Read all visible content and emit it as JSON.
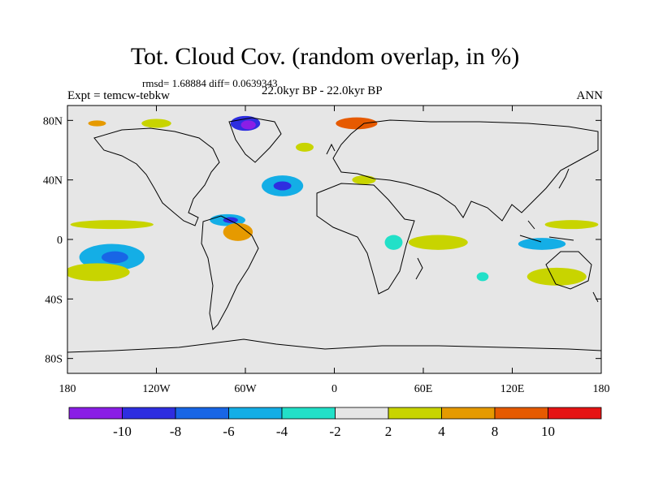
{
  "title": "Tot. Cloud Cov. (random overlap, in %)",
  "stats": "rmsd= 1.68884 diff= 0.0639343",
  "experiment": "Expt = temcw-tebkw",
  "period": "22.0kyr BP - 22.0kyr BP",
  "season": "ANN",
  "map": {
    "projection": "cylindrical-equidistant",
    "lon_range": [
      -180,
      180
    ],
    "lat_range": [
      -90,
      90
    ],
    "land_fill": "#e6e6e6",
    "lat_ticks": [
      {
        "lat": 80,
        "label": "80N"
      },
      {
        "lat": 40,
        "label": "40N"
      },
      {
        "lat": 0,
        "label": "0"
      },
      {
        "lat": -40,
        "label": "40S"
      },
      {
        "lat": -80,
        "label": "80S"
      }
    ],
    "lon_ticks": [
      {
        "lon": -180,
        "label": "180"
      },
      {
        "lon": -120,
        "label": "120W"
      },
      {
        "lon": -60,
        "label": "60W"
      },
      {
        "lon": 0,
        "label": "0"
      },
      {
        "lon": 60,
        "label": "60E"
      },
      {
        "lon": 120,
        "label": "120E"
      },
      {
        "lon": 180,
        "label": "180"
      }
    ]
  },
  "colorbar": {
    "colors": [
      "#8a1ee6",
      "#2e2ee0",
      "#1866e6",
      "#14aee6",
      "#22e0c8",
      "#e6e6e6",
      "#c8d400",
      "#e69a00",
      "#e65a00",
      "#e61414"
    ],
    "labels": [
      "-10",
      "-8",
      "-6",
      "-4",
      "-2",
      "2",
      "4",
      "8",
      "10"
    ]
  },
  "anomalies": [
    {
      "lon": -60,
      "lat": 78,
      "rx": 10,
      "ry": 5,
      "color": "#2e2ee0"
    },
    {
      "lon": -58,
      "lat": 77,
      "rx": 5,
      "ry": 3,
      "color": "#8a1ee6"
    },
    {
      "lon": -35,
      "lat": 36,
      "rx": 14,
      "ry": 7,
      "color": "#14aee6"
    },
    {
      "lon": -35,
      "lat": 36,
      "rx": 6,
      "ry": 3,
      "color": "#2e2ee0"
    },
    {
      "lon": -72,
      "lat": 13,
      "rx": 12,
      "ry": 4,
      "color": "#14aee6"
    },
    {
      "lon": -70,
      "lat": 13,
      "rx": 5,
      "ry": 2,
      "color": "#2e2ee0"
    },
    {
      "lon": -150,
      "lat": -12,
      "rx": 22,
      "ry": 9,
      "color": "#14aee6"
    },
    {
      "lon": -148,
      "lat": -12,
      "rx": 9,
      "ry": 4,
      "color": "#1866e6"
    },
    {
      "lon": -150,
      "lat": 10,
      "rx": 28,
      "ry": 3,
      "color": "#c8d400"
    },
    {
      "lon": -150,
      "lat": 3,
      "rx": 30,
      "ry": 3,
      "color": "#e6e6e6"
    },
    {
      "lon": -160,
      "lat": -22,
      "rx": 22,
      "ry": 6,
      "color": "#c8d400"
    },
    {
      "lon": -65,
      "lat": 5,
      "rx": 10,
      "ry": 6,
      "color": "#e69a00"
    },
    {
      "lon": 40,
      "lat": -2,
      "rx": 6,
      "ry": 5,
      "color": "#22e0c8"
    },
    {
      "lon": 70,
      "lat": -2,
      "rx": 20,
      "ry": 5,
      "color": "#c8d400"
    },
    {
      "lon": 140,
      "lat": -3,
      "rx": 16,
      "ry": 4,
      "color": "#14aee6"
    },
    {
      "lon": 160,
      "lat": 10,
      "rx": 18,
      "ry": 3,
      "color": "#c8d400"
    },
    {
      "lon": 150,
      "lat": -25,
      "rx": 20,
      "ry": 6,
      "color": "#c8d400"
    },
    {
      "lon": 15,
      "lat": 78,
      "rx": 14,
      "ry": 4,
      "color": "#e65a00"
    },
    {
      "lon": -20,
      "lat": 62,
      "rx": 6,
      "ry": 3,
      "color": "#c8d400"
    },
    {
      "lon": 20,
      "lat": 40,
      "rx": 8,
      "ry": 3,
      "color": "#c8d400"
    },
    {
      "lon": -120,
      "lat": 78,
      "rx": 10,
      "ry": 3,
      "color": "#c8d400"
    },
    {
      "lon": -160,
      "lat": 78,
      "rx": 6,
      "ry": 2,
      "color": "#e69a00"
    },
    {
      "lon": 100,
      "lat": -25,
      "rx": 4,
      "ry": 3,
      "color": "#22e0c8"
    }
  ]
}
